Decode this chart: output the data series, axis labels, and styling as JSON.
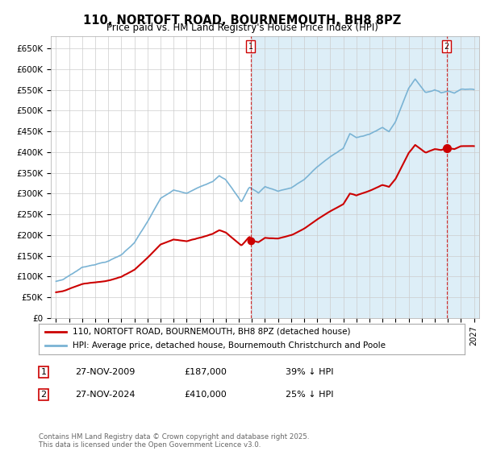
{
  "title": "110, NORTOFT ROAD, BOURNEMOUTH, BH8 8PZ",
  "subtitle": "Price paid vs. HM Land Registry's House Price Index (HPI)",
  "ylim": [
    0,
    680000
  ],
  "yticks": [
    0,
    50000,
    100000,
    150000,
    200000,
    250000,
    300000,
    350000,
    400000,
    450000,
    500000,
    550000,
    600000,
    650000
  ],
  "ytick_labels": [
    "£0",
    "£50K",
    "£100K",
    "£150K",
    "£200K",
    "£250K",
    "£300K",
    "£350K",
    "£400K",
    "£450K",
    "£500K",
    "£550K",
    "£600K",
    "£650K"
  ],
  "hpi_color": "#7ab3d4",
  "hpi_fill_color": "#ddeef7",
  "price_color": "#cc0000",
  "dot_color": "#cc0000",
  "marker1_date": 2009.9,
  "marker1_price": 187000,
  "marker2_date": 2024.9,
  "marker2_price": 410000,
  "legend_label1": "110, NORTOFT ROAD, BOURNEMOUTH, BH8 8PZ (detached house)",
  "legend_label2": "HPI: Average price, detached house, Bournemouth Christchurch and Poole",
  "note1_date": "27-NOV-2009",
  "note1_price": "£187,000",
  "note1_hpi": "39% ↓ HPI",
  "note2_date": "27-NOV-2024",
  "note2_price": "£410,000",
  "note2_hpi": "25% ↓ HPI",
  "footer": "Contains HM Land Registry data © Crown copyright and database right 2025.\nThis data is licensed under the Open Government Licence v3.0.",
  "bg_color": "#ffffff",
  "grid_color": "#cccccc",
  "xmin": 1994.6,
  "xmax": 2027.4
}
